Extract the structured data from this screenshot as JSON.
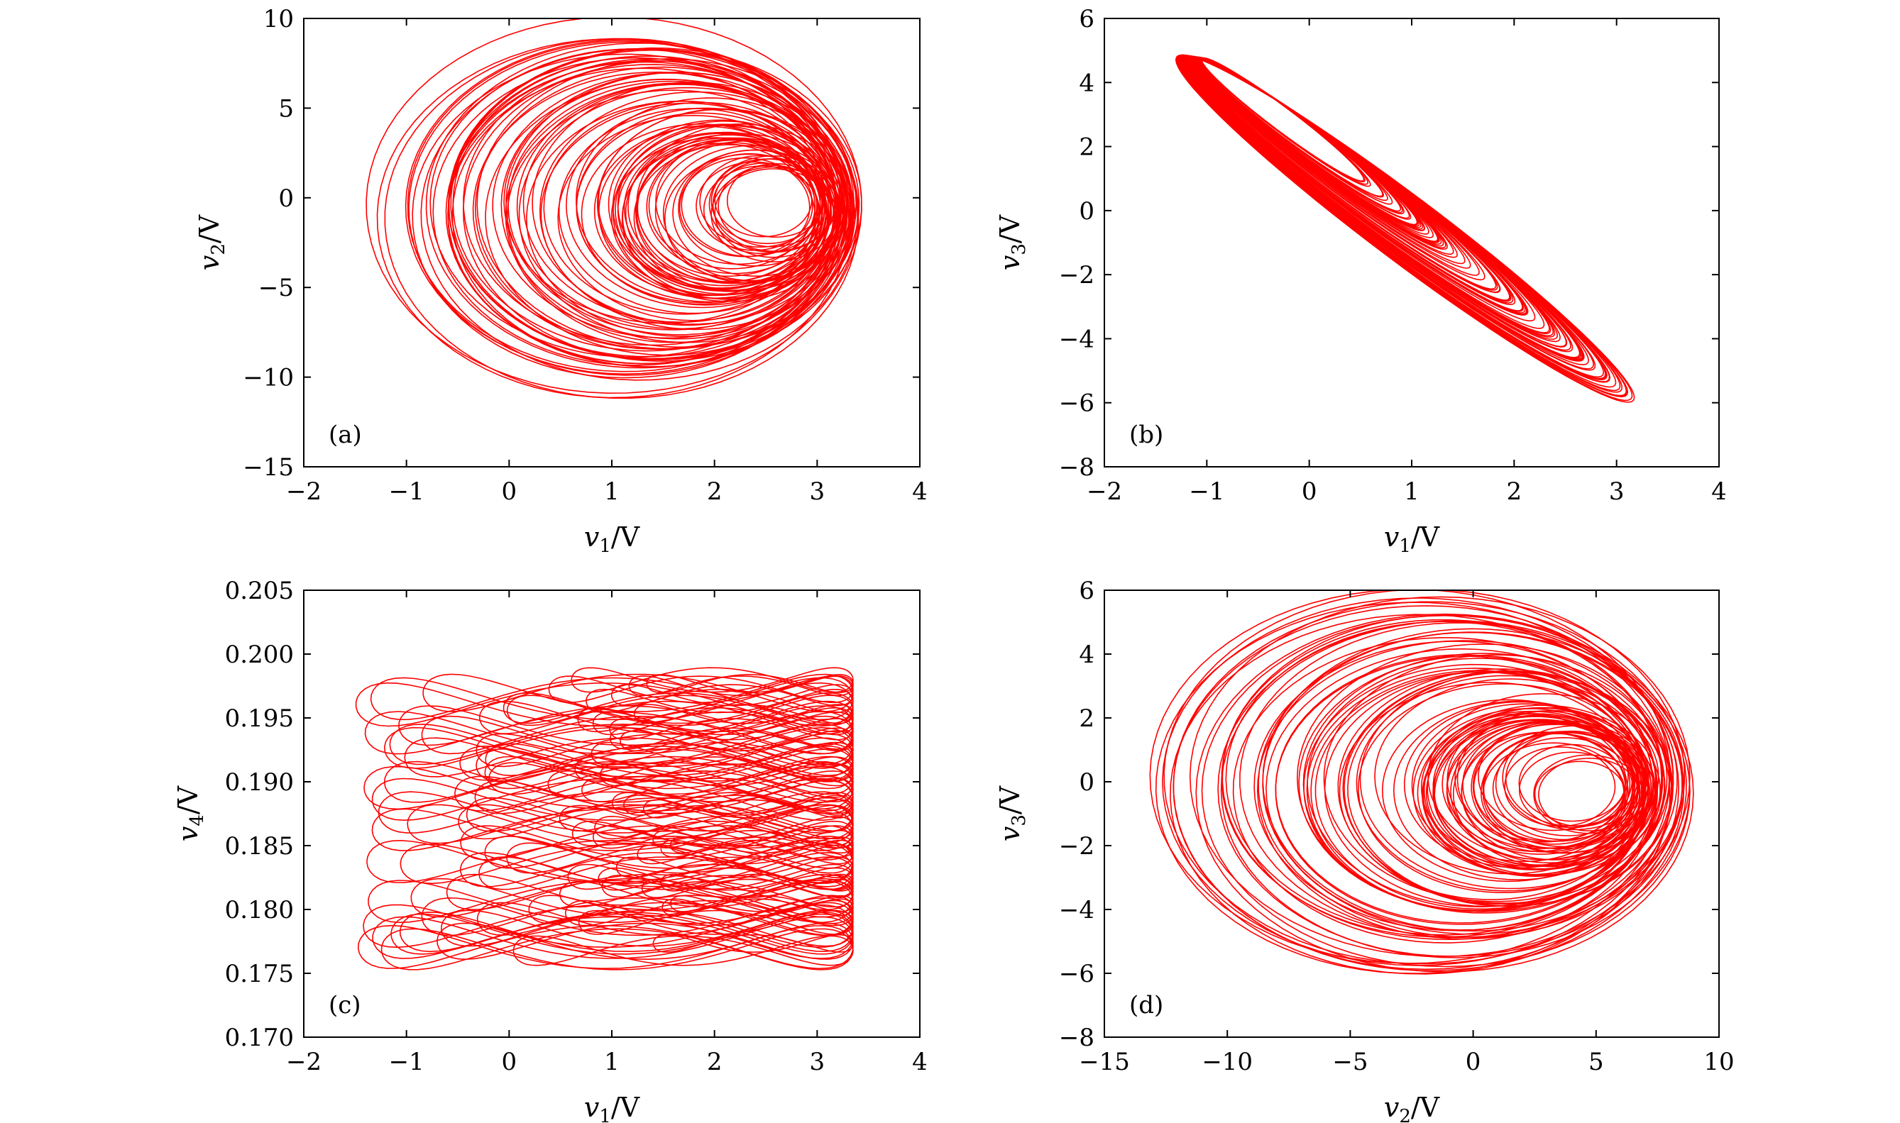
{
  "chart_data": [
    {
      "type": "scatter",
      "panel_label": "(a)",
      "xlabel": "v1/V",
      "ylabel": "v2/V",
      "xlim": [
        -2,
        4
      ],
      "ylim": [
        -15,
        10
      ],
      "xticks": [
        -2,
        -1,
        0,
        1,
        2,
        3,
        4
      ],
      "yticks": [
        -15,
        -10,
        -5,
        0,
        5,
        10
      ],
      "grid": false,
      "legend": "none",
      "color": "#ff0000",
      "x_range_of_data": [
        -1.55,
        3.35
      ],
      "y_range_of_data": [
        -12.8,
        8.5
      ]
    },
    {
      "type": "scatter",
      "panel_label": "(b)",
      "xlabel": "v1/V",
      "ylabel": "v3/V",
      "xlim": [
        -2,
        4
      ],
      "ylim": [
        -8,
        6
      ],
      "xticks": [
        -2,
        -1,
        0,
        1,
        2,
        3,
        4
      ],
      "yticks": [
        -8,
        -6,
        -4,
        -2,
        0,
        2,
        4,
        6
      ],
      "grid": false,
      "legend": "none",
      "color": "#ff0000",
      "x_range_of_data": [
        -1.55,
        3.35
      ],
      "y_range_of_data": [
        -6.5,
        5.3
      ]
    },
    {
      "type": "scatter",
      "panel_label": "(c)",
      "xlabel": "v1/V",
      "ylabel": "v4/V",
      "xlim": [
        -2,
        4
      ],
      "ylim": [
        0.17,
        0.205
      ],
      "xticks": [
        -2,
        -1,
        0,
        1,
        2,
        3,
        4
      ],
      "yticks": [
        "0.170",
        "0.175",
        "0.180",
        "0.185",
        "0.190",
        "0.195",
        "0.200",
        "0.205"
      ],
      "grid": false,
      "legend": "none",
      "color": "#ff0000",
      "x_range_of_data": [
        -1.55,
        3.35
      ],
      "y_range_of_data": [
        0.1725,
        0.201
      ]
    },
    {
      "type": "scatter",
      "panel_label": "(d)",
      "xlabel": "v2/V",
      "ylabel": "v3/V",
      "xlim": [
        -15,
        10
      ],
      "ylim": [
        -8,
        6
      ],
      "xticks": [
        -15,
        -10,
        -5,
        0,
        5,
        10
      ],
      "yticks": [
        -8,
        -6,
        -4,
        -2,
        0,
        2,
        4,
        6
      ],
      "grid": false,
      "legend": "none",
      "color": "#ff0000",
      "x_range_of_data": [
        -12.8,
        8.5
      ],
      "y_range_of_data": [
        -6.5,
        5.3
      ]
    }
  ]
}
